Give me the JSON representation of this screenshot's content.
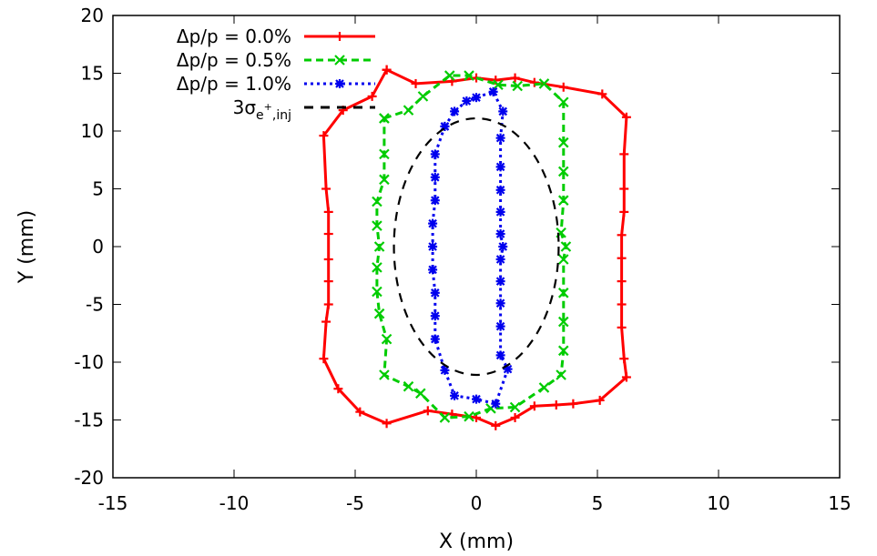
{
  "chart_data": {
    "type": "line",
    "title": "",
    "xlabel": "X (mm)",
    "ylabel": "Y (mm)",
    "xlim": [
      -15,
      15
    ],
    "ylim": [
      -20,
      20
    ],
    "xticks": [
      -15,
      -10,
      -5,
      0,
      5,
      10,
      15
    ],
    "yticks": [
      -20,
      -15,
      -10,
      -5,
      0,
      5,
      10,
      15,
      20
    ],
    "grid": false,
    "legend_position": "top-left",
    "series": [
      {
        "name": "Δp/p = 0.0%",
        "color": "#ff0000",
        "marker": "plus",
        "dash": "solid",
        "points": [
          [
            -3.7,
            15.3
          ],
          [
            -4.3,
            13.0
          ],
          [
            -5.5,
            11.8
          ],
          [
            -6.3,
            9.6
          ],
          [
            -6.2,
            5.0
          ],
          [
            -6.1,
            3.0
          ],
          [
            -6.1,
            1.1
          ],
          [
            -6.1,
            -1.1
          ],
          [
            -6.1,
            -3.0
          ],
          [
            -6.1,
            -5.0
          ],
          [
            -6.2,
            -6.5
          ],
          [
            -6.3,
            -9.7
          ],
          [
            -5.7,
            -12.3
          ],
          [
            -4.8,
            -14.3
          ],
          [
            -3.7,
            -15.3
          ],
          [
            -2.0,
            -14.2
          ],
          [
            -1.0,
            -14.5
          ],
          [
            0.0,
            -14.8
          ],
          [
            0.8,
            -15.5
          ],
          [
            1.6,
            -14.8
          ],
          [
            2.4,
            -13.8
          ],
          [
            3.3,
            -13.7
          ],
          [
            4.0,
            -13.6
          ],
          [
            5.1,
            -13.3
          ],
          [
            6.2,
            -11.3
          ],
          [
            6.1,
            -9.7
          ],
          [
            6.0,
            -7.0
          ],
          [
            6.0,
            -5.0
          ],
          [
            6.0,
            -3.0
          ],
          [
            6.0,
            -1.0
          ],
          [
            6.0,
            1.0
          ],
          [
            6.1,
            3.0
          ],
          [
            6.1,
            5.0
          ],
          [
            6.1,
            8.0
          ],
          [
            6.2,
            11.2
          ],
          [
            5.2,
            13.2
          ],
          [
            3.6,
            13.8
          ],
          [
            2.4,
            14.2
          ],
          [
            1.6,
            14.6
          ],
          [
            0.8,
            14.4
          ],
          [
            0.0,
            14.6
          ],
          [
            -1.0,
            14.3
          ],
          [
            -2.5,
            14.1
          ],
          [
            -3.7,
            15.3
          ]
        ]
      },
      {
        "name": "Δp/p = 0.5%",
        "color": "#00cc00",
        "marker": "x",
        "dash": "dashed",
        "points": [
          [
            -3.8,
            11.1
          ],
          [
            -2.8,
            11.8
          ],
          [
            -2.2,
            13.0
          ],
          [
            -1.1,
            14.8
          ],
          [
            -0.3,
            14.8
          ],
          [
            0.9,
            14.0
          ],
          [
            1.7,
            13.9
          ],
          [
            2.8,
            14.1
          ],
          [
            3.6,
            12.5
          ],
          [
            3.6,
            9.0
          ],
          [
            3.6,
            6.5
          ],
          [
            3.6,
            4.0
          ],
          [
            3.5,
            1.2
          ],
          [
            3.7,
            0.0
          ],
          [
            3.6,
            -1.1
          ],
          [
            3.6,
            -4.0
          ],
          [
            3.6,
            -6.5
          ],
          [
            3.6,
            -9.0
          ],
          [
            3.5,
            -11.1
          ],
          [
            2.8,
            -12.2
          ],
          [
            1.6,
            -13.9
          ],
          [
            0.6,
            -14.0
          ],
          [
            -0.3,
            -14.7
          ],
          [
            -1.3,
            -14.8
          ],
          [
            -2.3,
            -12.7
          ],
          [
            -2.8,
            -12.1
          ],
          [
            -3.8,
            -11.1
          ],
          [
            -3.7,
            -8.0
          ],
          [
            -4.0,
            -5.8
          ],
          [
            -4.1,
            -3.9
          ],
          [
            -4.1,
            -1.8
          ],
          [
            -4.0,
            0.0
          ],
          [
            -4.1,
            1.8
          ],
          [
            -4.1,
            3.9
          ],
          [
            -3.8,
            5.8
          ],
          [
            -3.8,
            8.0
          ],
          [
            -3.8,
            11.1
          ]
        ]
      },
      {
        "name": "Δp/p = 1.0%",
        "color": "#0000ee",
        "marker": "star",
        "dash": "dotted",
        "points": [
          [
            -1.3,
            10.4
          ],
          [
            -0.9,
            11.7
          ],
          [
            -0.4,
            12.6
          ],
          [
            0.0,
            12.9
          ],
          [
            0.7,
            13.4
          ],
          [
            1.1,
            11.7
          ],
          [
            1.0,
            9.4
          ],
          [
            1.0,
            6.9
          ],
          [
            1.0,
            4.9
          ],
          [
            1.0,
            3.0
          ],
          [
            1.0,
            1.1
          ],
          [
            1.1,
            0.0
          ],
          [
            1.0,
            -1.1
          ],
          [
            1.0,
            -3.0
          ],
          [
            1.0,
            -4.9
          ],
          [
            1.0,
            -6.9
          ],
          [
            1.0,
            -9.4
          ],
          [
            1.3,
            -10.6
          ],
          [
            0.8,
            -13.6
          ],
          [
            0.0,
            -13.2
          ],
          [
            -0.9,
            -12.9
          ],
          [
            -1.3,
            -10.7
          ],
          [
            -1.7,
            -8.0
          ],
          [
            -1.7,
            -6.0
          ],
          [
            -1.7,
            -4.0
          ],
          [
            -1.8,
            -2.0
          ],
          [
            -1.8,
            0.0
          ],
          [
            -1.8,
            2.0
          ],
          [
            -1.7,
            4.0
          ],
          [
            -1.7,
            6.0
          ],
          [
            -1.7,
            8.0
          ],
          [
            -1.3,
            10.4
          ]
        ]
      },
      {
        "name": "3σ",
        "name_sub": "e",
        "name_sup": "+",
        "name_sub2": ",inj",
        "color": "#000000",
        "marker": "none",
        "dash": "longdash",
        "ellipse": {
          "cx": 0.0,
          "cy": 0.0,
          "rx": 3.4,
          "ry": 11.1
        }
      }
    ]
  }
}
